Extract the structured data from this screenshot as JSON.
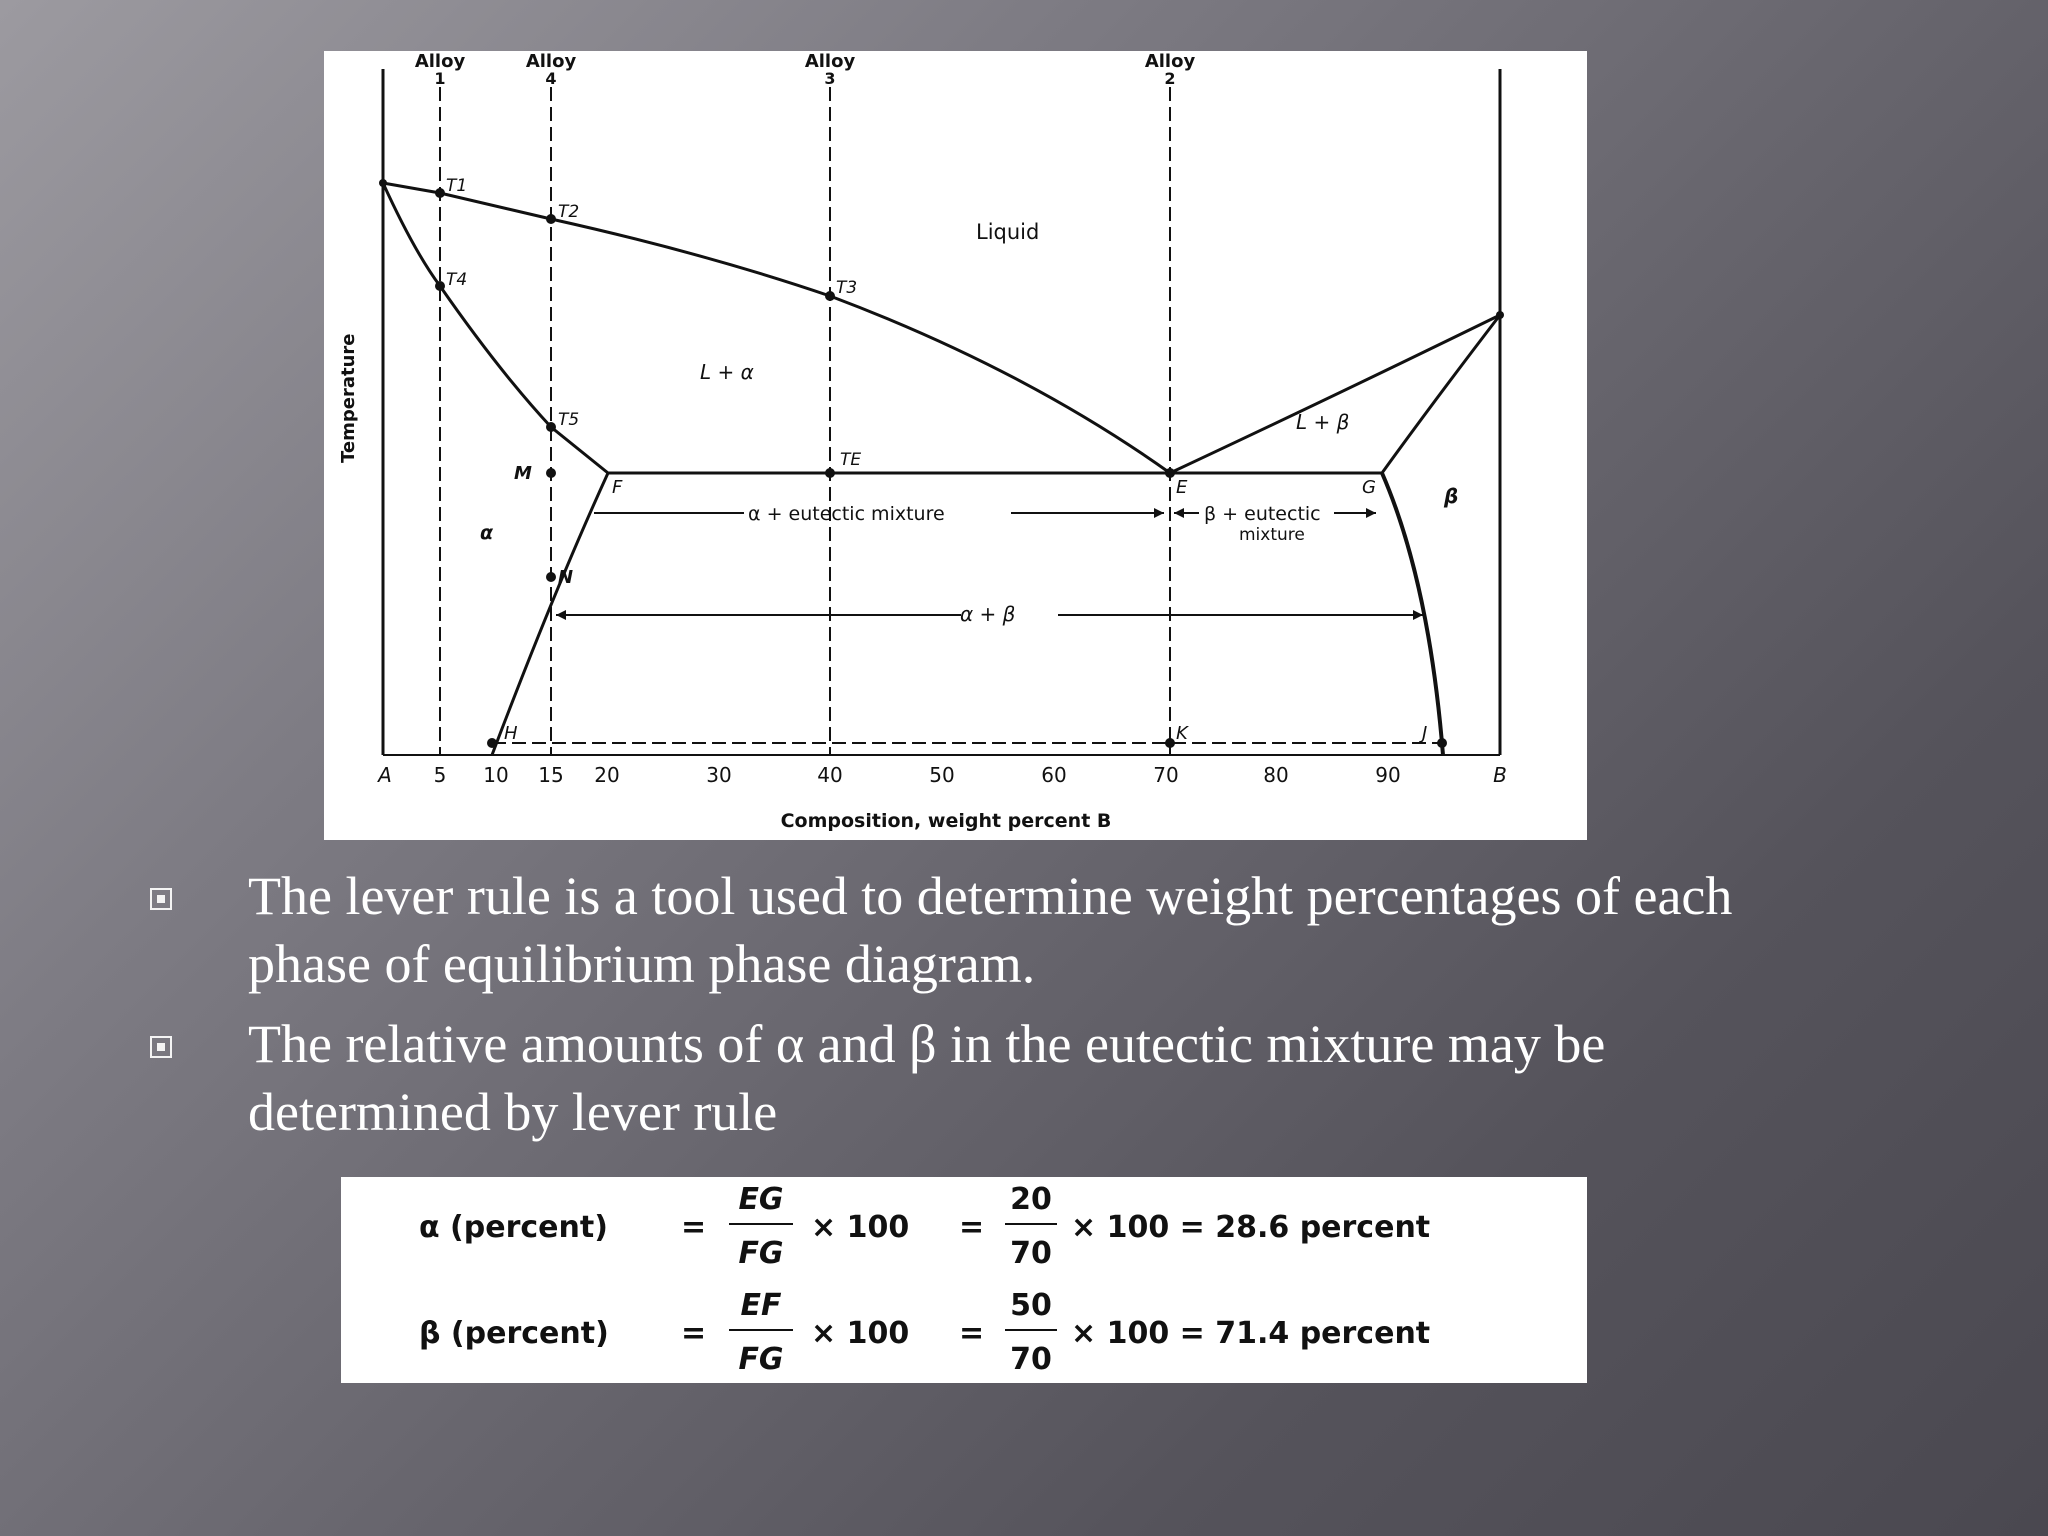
{
  "diagram": {
    "alloys": [
      {
        "label": "Alloy",
        "num": "1"
      },
      {
        "label": "Alloy",
        "num": "4"
      },
      {
        "label": "Alloy",
        "num": "3"
      },
      {
        "label": "Alloy",
        "num": "2"
      }
    ],
    "y_axis_label": "Temperature",
    "x_axis_label": "Composition, weight percent B",
    "x_ticks": [
      "A",
      "5",
      "10",
      "15",
      "20",
      "30",
      "40",
      "50",
      "60",
      "70",
      "80",
      "90",
      "B"
    ],
    "region_labels": {
      "liquid": "Liquid",
      "l_alpha": "L + α",
      "l_beta": "L + β",
      "alpha": "α",
      "beta": "β",
      "alpha_eutectic": "α + eutectic mixture",
      "beta_eutectic_1": "β + eutectic",
      "beta_eutectic_2": "mixture",
      "alpha_beta": "α + β"
    },
    "point_labels": {
      "t1": "T1",
      "t2": "T2",
      "t3": "T3",
      "t4": "T4",
      "t5": "T5",
      "te": "TE",
      "m": "M",
      "n": "N",
      "f": "F",
      "e": "E",
      "g": "G",
      "h": "H",
      "k": "K",
      "j": "J"
    }
  },
  "bullets": [
    "The lever rule is a tool used to determine weight percentages of each phase of  equilibrium phase diagram.",
    "The relative amounts of α and β in the eutectic mixture may be determined by lever rule"
  ],
  "formulas": [
    {
      "lhs": "α (percent)",
      "num1": "EG",
      "den1": "FG",
      "mult": "× 100",
      "num2": "20",
      "den2": "70",
      "result": "× 100 = 28.6 percent"
    },
    {
      "lhs": "β (percent)",
      "num1": "EF",
      "den1": "FG",
      "mult": "× 100",
      "num2": "50",
      "den2": "70",
      "result": "× 100 = 71.4 percent"
    }
  ]
}
